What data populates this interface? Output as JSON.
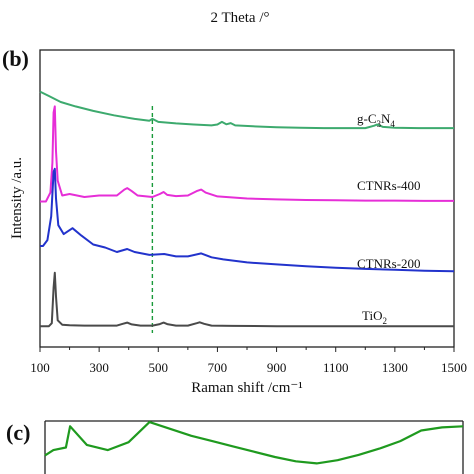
{
  "top_fragment": {
    "xlabel": "2 Theta /°"
  },
  "panel_b": {
    "tag": "(b)"
  },
  "panel_c": {
    "tag": "(c)"
  },
  "chart_data": [
    {
      "type": "line",
      "panel": "(b)",
      "xlabel": "Raman shift /cm⁻¹",
      "ylabel": "Intensity /a.u.",
      "xlim": [
        100,
        1500
      ],
      "xticks": [
        100,
        300,
        500,
        700,
        900,
        1100,
        1300,
        1500
      ],
      "yticks": "none (arbitrary units, stacked/offset curves)",
      "ylim_normalized": [
        0,
        1
      ],
      "grid": false,
      "legend": "none (labels printed beside each curve, right side)",
      "reference_line": {
        "x": 480,
        "style": "dashed",
        "color": "#1a9a3a"
      },
      "series": [
        {
          "name": "g-C3N4",
          "label_main": "g-C",
          "label_sub1": "3",
          "label_mid": "N",
          "label_sub2": "4",
          "color": "#3daa6e",
          "x": [
            100,
            130,
            170,
            220,
            280,
            350,
            420,
            470,
            480,
            500,
            560,
            620,
            680,
            700,
            715,
            730,
            745,
            760,
            820,
            900,
            980,
            1060,
            1140,
            1200,
            1230,
            1240,
            1260,
            1300,
            1380,
            1450,
            1500
          ],
          "y": [
            0.86,
            0.845,
            0.825,
            0.81,
            0.795,
            0.78,
            0.768,
            0.762,
            0.768,
            0.758,
            0.753,
            0.749,
            0.746,
            0.749,
            0.758,
            0.75,
            0.754,
            0.746,
            0.743,
            0.74,
            0.738,
            0.737,
            0.737,
            0.737,
            0.745,
            0.749,
            0.741,
            0.738,
            0.737,
            0.737,
            0.737
          ]
        },
        {
          "name": "CTNRs-400",
          "color": "#e62ed7",
          "x": [
            100,
            120,
            135,
            142,
            146,
            150,
            154,
            160,
            175,
            200,
            250,
            300,
            360,
            385,
            395,
            410,
            430,
            480,
            505,
            518,
            530,
            560,
            600,
            630,
            645,
            660,
            700,
            800,
            900,
            1000,
            1100,
            1200,
            1300,
            1400,
            1500
          ],
          "y": [
            0.49,
            0.49,
            0.52,
            0.62,
            0.79,
            0.81,
            0.66,
            0.56,
            0.51,
            0.515,
            0.505,
            0.51,
            0.51,
            0.53,
            0.535,
            0.525,
            0.51,
            0.505,
            0.515,
            0.522,
            0.512,
            0.508,
            0.51,
            0.525,
            0.53,
            0.52,
            0.507,
            0.5,
            0.497,
            0.495,
            0.494,
            0.493,
            0.493,
            0.492,
            0.492
          ]
        },
        {
          "name": "CTNRs-200",
          "color": "#2233cc",
          "x": [
            100,
            110,
            125,
            138,
            146,
            150,
            154,
            162,
            180,
            210,
            240,
            280,
            320,
            360,
            395,
            420,
            470,
            520,
            560,
            600,
            645,
            680,
            720,
            800,
            900,
            1000,
            1100,
            1200,
            1300,
            1400,
            1500
          ],
          "y": [
            0.34,
            0.34,
            0.36,
            0.44,
            0.59,
            0.6,
            0.5,
            0.41,
            0.38,
            0.4,
            0.375,
            0.345,
            0.335,
            0.32,
            0.33,
            0.32,
            0.31,
            0.313,
            0.305,
            0.305,
            0.315,
            0.302,
            0.295,
            0.285,
            0.278,
            0.272,
            0.267,
            0.263,
            0.26,
            0.257,
            0.255
          ]
        },
        {
          "name": "TiO2",
          "label_main": "TiO",
          "label_sub1": "2",
          "color": "#4a4a4a",
          "x": [
            100,
            130,
            140,
            146,
            150,
            154,
            160,
            175,
            200,
            250,
            300,
            360,
            380,
            395,
            410,
            440,
            480,
            505,
            518,
            530,
            560,
            600,
            630,
            640,
            655,
            680,
            750,
            900,
            1100,
            1300,
            1500
          ],
          "y": [
            0.07,
            0.07,
            0.08,
            0.2,
            0.25,
            0.17,
            0.09,
            0.075,
            0.073,
            0.072,
            0.072,
            0.072,
            0.078,
            0.082,
            0.076,
            0.072,
            0.072,
            0.077,
            0.082,
            0.077,
            0.072,
            0.072,
            0.08,
            0.083,
            0.078,
            0.072,
            0.071,
            0.07,
            0.07,
            0.07,
            0.07
          ]
        }
      ]
    },
    {
      "type": "line",
      "panel": "(c)",
      "partial": true,
      "series": [
        {
          "color": "#1f9a1f",
          "x": [
            0,
            0.02,
            0.05,
            0.06,
            0.1,
            0.15,
            0.2,
            0.25,
            0.3,
            0.35,
            0.4,
            0.45,
            0.5,
            0.55,
            0.6,
            0.65,
            0.7,
            0.75,
            0.8,
            0.85,
            0.9,
            0.95,
            1.0
          ],
          "y": [
            0.35,
            0.45,
            0.5,
            0.9,
            0.55,
            0.45,
            0.6,
            0.98,
            0.85,
            0.72,
            0.62,
            0.52,
            0.42,
            0.32,
            0.24,
            0.2,
            0.26,
            0.36,
            0.48,
            0.62,
            0.82,
            0.88,
            0.9
          ]
        }
      ]
    }
  ]
}
